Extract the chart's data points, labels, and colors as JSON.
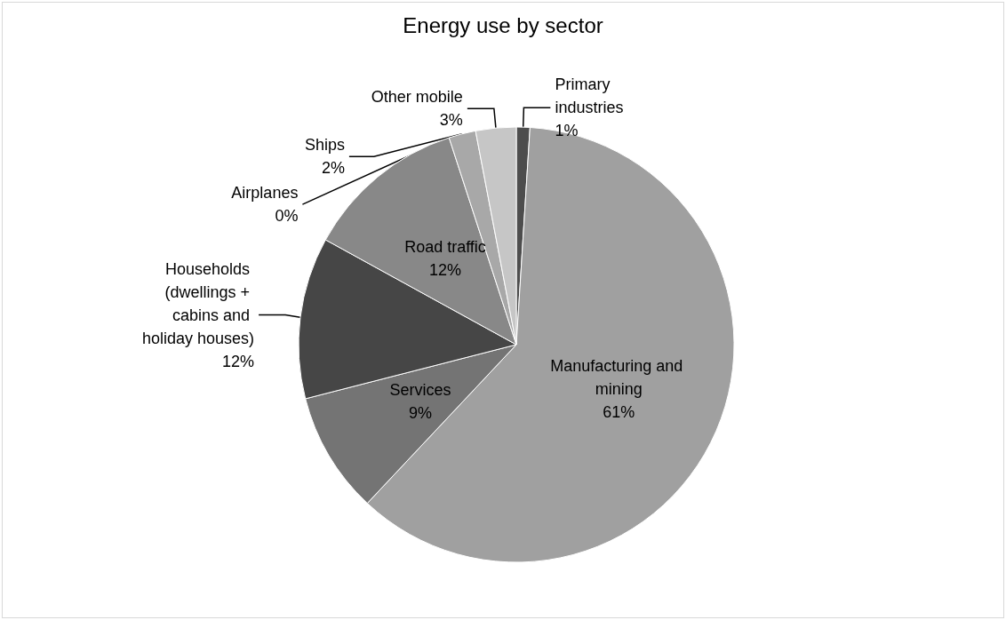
{
  "chart_data": {
    "type": "pie",
    "title": "Energy use by sector",
    "categories": [
      "Primary industries",
      "Manufacturing and mining",
      "Services",
      "Households (dwellings + cabins and holiday houses)",
      "Road traffic",
      "Airplanes",
      "Ships",
      "Other mobile"
    ],
    "values": [
      1,
      61,
      9,
      12,
      12,
      0,
      2,
      3
    ],
    "value_labels": [
      "1%",
      "61%",
      "9%",
      "12%",
      "12%",
      "0%",
      "2%",
      "3%"
    ],
    "colors": [
      "#4d4d4d",
      "#a0a0a0",
      "#747474",
      "#464646",
      "#888888",
      "#bcbcbc",
      "#a8a8a8",
      "#c6c6c6"
    ],
    "legend": false
  }
}
